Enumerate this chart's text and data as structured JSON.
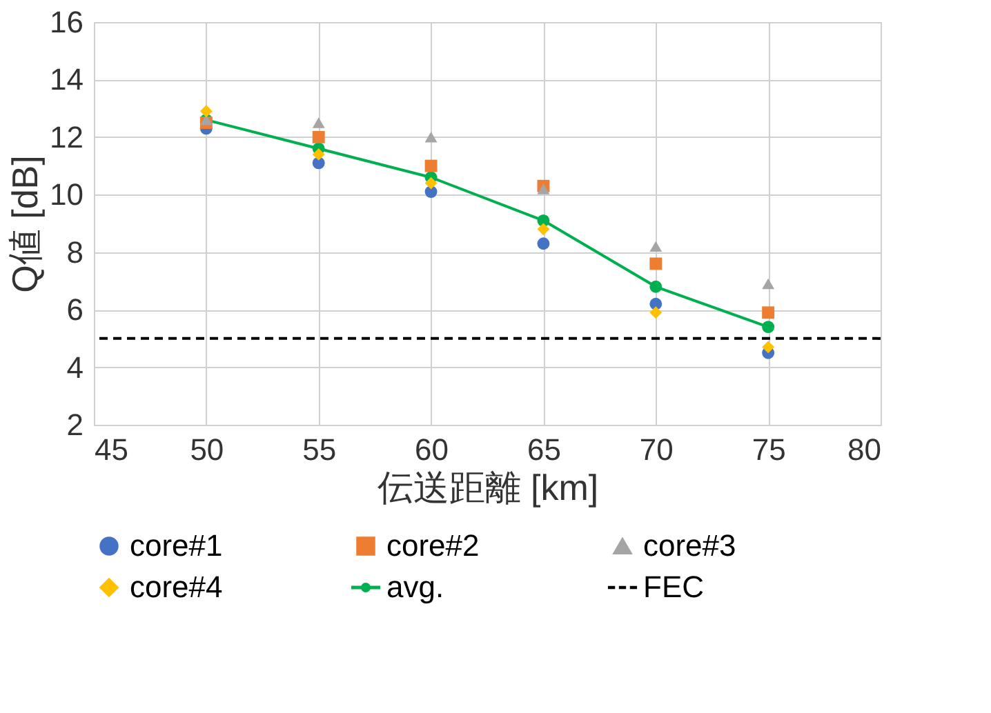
{
  "chart_data": {
    "type": "scatter",
    "xlabel": "伝送距離 [km]",
    "ylabel": "Q値 [dB]",
    "x": [
      50,
      55,
      60,
      65,
      70,
      75
    ],
    "xlim": [
      45,
      80
    ],
    "xticks": [
      45,
      50,
      55,
      60,
      65,
      70,
      75,
      80
    ],
    "ylim": [
      2,
      16
    ],
    "yticks": [
      2,
      4,
      6,
      8,
      10,
      12,
      14,
      16
    ],
    "grid": true,
    "legend": "bottom",
    "series": [
      {
        "name": "core#1",
        "color": "#4472c4",
        "marker": "circle",
        "values": [
          12.3,
          11.1,
          10.1,
          8.3,
          6.2,
          4.5
        ]
      },
      {
        "name": "core#2",
        "color": "#ed7d31",
        "marker": "square",
        "values": [
          12.5,
          12.0,
          11.0,
          10.3,
          7.6,
          5.9
        ]
      },
      {
        "name": "core#3",
        "color": "#a5a5a5",
        "marker": "triangle",
        "values": [
          12.6,
          12.5,
          12.0,
          10.2,
          8.2,
          6.9
        ]
      },
      {
        "name": "core#4",
        "color": "#ffc000",
        "marker": "diamond",
        "values": [
          12.9,
          11.4,
          10.4,
          8.8,
          5.9,
          4.7
        ]
      },
      {
        "name": "avg.",
        "color": "#00b050",
        "type": "line",
        "marker": "circle",
        "values": [
          12.6,
          11.6,
          10.6,
          9.1,
          6.8,
          5.4
        ]
      }
    ],
    "ref_lines": [
      {
        "axis": "y",
        "value": 5.0,
        "label": "FEC",
        "color": "#000000",
        "line_style": "dashed"
      }
    ]
  }
}
